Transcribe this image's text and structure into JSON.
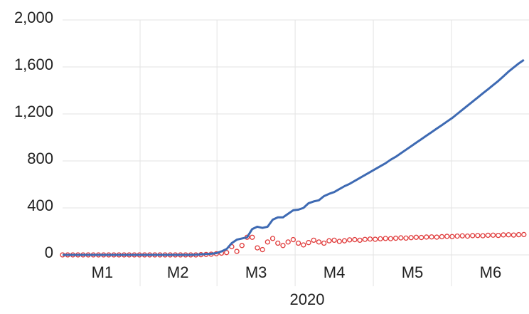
{
  "chart_data": {
    "type": "line",
    "x_label": "2020",
    "x": [
      0,
      2,
      4,
      6,
      8,
      10,
      12,
      14,
      16,
      18,
      20,
      22,
      24,
      26,
      28,
      30,
      32,
      34,
      36,
      38,
      40,
      42,
      44,
      46,
      48,
      50,
      52,
      54,
      56,
      58,
      60,
      62,
      64,
      66,
      68,
      70,
      72,
      74,
      76,
      78,
      80,
      82,
      84,
      86,
      88,
      90,
      92,
      94,
      96,
      98,
      100,
      102,
      104,
      106,
      108,
      110,
      112,
      114,
      116,
      118,
      120,
      122,
      124,
      126,
      128,
      130,
      132,
      134,
      136,
      138,
      140,
      142,
      144,
      146,
      148,
      150,
      152,
      154,
      156,
      158,
      160,
      162,
      164,
      166,
      168,
      170,
      172,
      174,
      176,
      178,
      180
    ],
    "xlim": [
      0,
      182
    ],
    "xticks": [
      {
        "value": 15.5,
        "label": "M1"
      },
      {
        "value": 45,
        "label": "M2"
      },
      {
        "value": 75.5,
        "label": "M3"
      },
      {
        "value": 106,
        "label": "M4"
      },
      {
        "value": 136.5,
        "label": "M5"
      },
      {
        "value": 167,
        "label": "M6"
      }
    ],
    "ylim": [
      0,
      2000
    ],
    "yticks": [
      0,
      400,
      800,
      {
        "value": 1200,
        "label": "1,200"
      },
      {
        "value": 1600,
        "label": "1,600"
      },
      {
        "value": 2000,
        "label": "2,000"
      }
    ],
    "grid": true,
    "series": [
      {
        "style": "line",
        "color": "#3e6ab3",
        "values": [
          0,
          0,
          0,
          0,
          0,
          0,
          0,
          0,
          0,
          0,
          0,
          0,
          0,
          0,
          0,
          0,
          0,
          0,
          0,
          0,
          0,
          0,
          0,
          0,
          0,
          0,
          2,
          5,
          8,
          10,
          15,
          30,
          50,
          100,
          130,
          140,
          150,
          220,
          240,
          230,
          240,
          300,
          320,
          320,
          350,
          380,
          385,
          400,
          440,
          455,
          465,
          500,
          520,
          535,
          560,
          585,
          605,
          630,
          655,
          680,
          705,
          730,
          755,
          780,
          810,
          835,
          865,
          895,
          925,
          955,
          985,
          1015,
          1045,
          1075,
          1105,
          1135,
          1165,
          1200,
          1235,
          1270,
          1305,
          1340,
          1375,
          1410,
          1445,
          1480,
          1520,
          1560,
          1595,
          1630,
          1660
        ]
      },
      {
        "style": "markers",
        "color": "#e03a3a",
        "values": [
          0,
          0,
          0,
          0,
          0,
          0,
          0,
          0,
          0,
          0,
          0,
          0,
          0,
          0,
          0,
          0,
          0,
          0,
          0,
          0,
          0,
          0,
          0,
          0,
          0,
          0,
          0,
          2,
          4,
          6,
          10,
          15,
          20,
          70,
          30,
          80,
          150,
          150,
          60,
          45,
          110,
          140,
          100,
          80,
          110,
          130,
          100,
          85,
          105,
          125,
          110,
          100,
          120,
          125,
          115,
          120,
          128,
          130,
          125,
          132,
          135,
          133,
          137,
          140,
          138,
          142,
          145,
          143,
          147,
          150,
          148,
          152,
          153,
          151,
          155,
          158,
          156,
          160,
          162,
          160,
          164,
          165,
          163,
          167,
          168,
          166,
          170,
          171,
          169,
          172,
          173
        ]
      }
    ]
  }
}
